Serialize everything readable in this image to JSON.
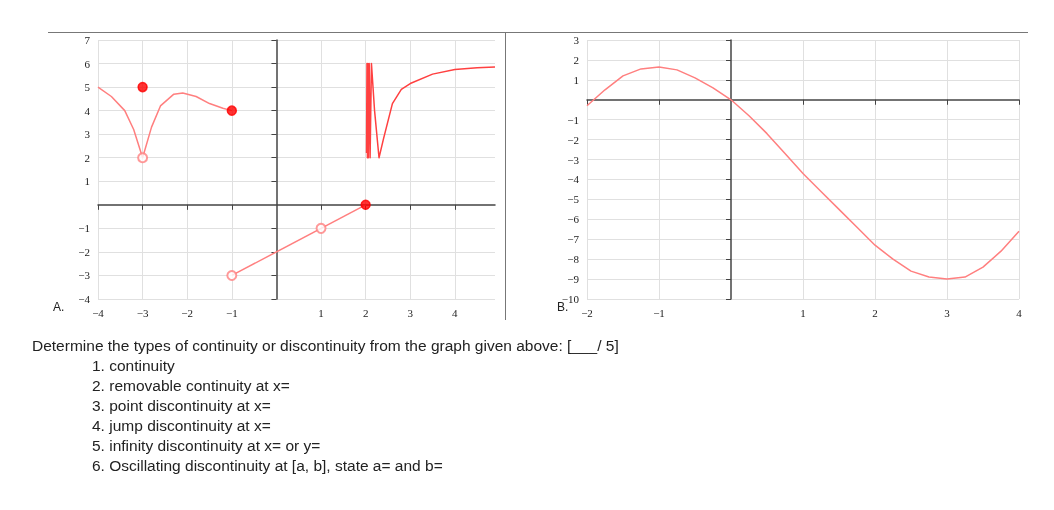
{
  "chart_data": [
    {
      "type": "line",
      "title": "A.",
      "xlim": [
        -4,
        4.9
      ],
      "xticks": [
        -4,
        -3,
        -2,
        -1,
        1,
        2,
        3,
        4
      ],
      "ylim": [
        -4,
        7
      ],
      "yticks": [
        -4,
        -3,
        -2,
        -1,
        1,
        2,
        3,
        4,
        5,
        6,
        7
      ],
      "grid": true,
      "line_style": "solid",
      "series": [
        {
          "type": "line",
          "color": "#ff7f7f",
          "marker": "none",
          "x": [
            -4,
            -3.7,
            -3.4,
            -3.2,
            -3,
            -2.8,
            -2.6,
            -2.3,
            -2.1,
            -1.8,
            -1.5,
            -1.2,
            -1
          ],
          "values": [
            5,
            4.6,
            4,
            3.2,
            2,
            3.3,
            4.2,
            4.7,
            4.75,
            4.6,
            4.3,
            4.1,
            4
          ]
        },
        {
          "type": "line",
          "color": "#ff7f7f",
          "marker": "none",
          "x": [
            -1,
            2
          ],
          "values": [
            -3,
            0
          ]
        },
        {
          "type": "line",
          "color": "#ff4040",
          "marker": "none",
          "x": [
            2.02,
            2.03,
            2.04,
            2.05,
            2.06,
            2.08,
            2.1,
            2.13,
            2.2,
            2.3,
            2.4,
            2.6,
            2.8,
            3,
            3.5,
            4,
            4.5,
            4.9
          ],
          "values": [
            2.2,
            6,
            2,
            6,
            2,
            6,
            2,
            6,
            4,
            2,
            2.8,
            4.3,
            4.9,
            5.15,
            5.55,
            5.75,
            5.82,
            5.85
          ]
        },
        {
          "type": "scatter",
          "color": "#ff0000",
          "marker": "circle",
          "x": [
            -3,
            -1,
            2
          ],
          "values": [
            5,
            4,
            0
          ]
        },
        {
          "type": "scatter",
          "color": "#ff7f7f",
          "marker": "open circle",
          "x": [
            -3,
            -1,
            1
          ],
          "values": [
            2,
            -3,
            -1
          ]
        }
      ]
    },
    {
      "type": "line",
      "title": "B.",
      "xlim": [
        -2,
        4
      ],
      "xticks": [
        -2,
        -1,
        1,
        2,
        3,
        4
      ],
      "ylim": [
        -10,
        3
      ],
      "yticks": [
        -10,
        -9,
        -8,
        -7,
        -6,
        -5,
        -4,
        -3,
        -2,
        -1,
        1,
        2,
        3
      ],
      "grid": true,
      "line_style": "solid",
      "series": [
        {
          "type": "line",
          "color": "#ff7f7f",
          "marker": "none",
          "x": [
            -2,
            -1.75,
            -1.5,
            -1.25,
            -1,
            -0.75,
            -0.5,
            -0.25,
            0,
            0.25,
            0.5,
            0.75,
            1,
            1.25,
            1.5,
            1.75,
            2,
            2.25,
            2.5,
            2.75,
            3,
            3.25,
            3.5,
            3.75,
            4
          ],
          "values": [
            -0.3,
            0.5,
            1.2,
            1.55,
            1.65,
            1.5,
            1.1,
            0.6,
            0,
            -0.8,
            -1.7,
            -2.7,
            -3.7,
            -4.6,
            -5.5,
            -6.4,
            -7.3,
            -8,
            -8.6,
            -8.9,
            -9,
            -8.9,
            -8.4,
            -7.6,
            -6.6
          ]
        }
      ]
    },
    {
      "type": "other",
      "title": "Determine the types of continuity or discontinuity from the graph given above: [___/ 5]",
      "annotations": [
        "1. continuity",
        "2. removable continuity at x=",
        "3. point discontinuity at x=",
        "4. jump discontinuity at x=",
        "5. infinity discontinuity at x= or y=",
        "6. Oscillating discontinuity at [a, b], state a= and b="
      ]
    }
  ]
}
